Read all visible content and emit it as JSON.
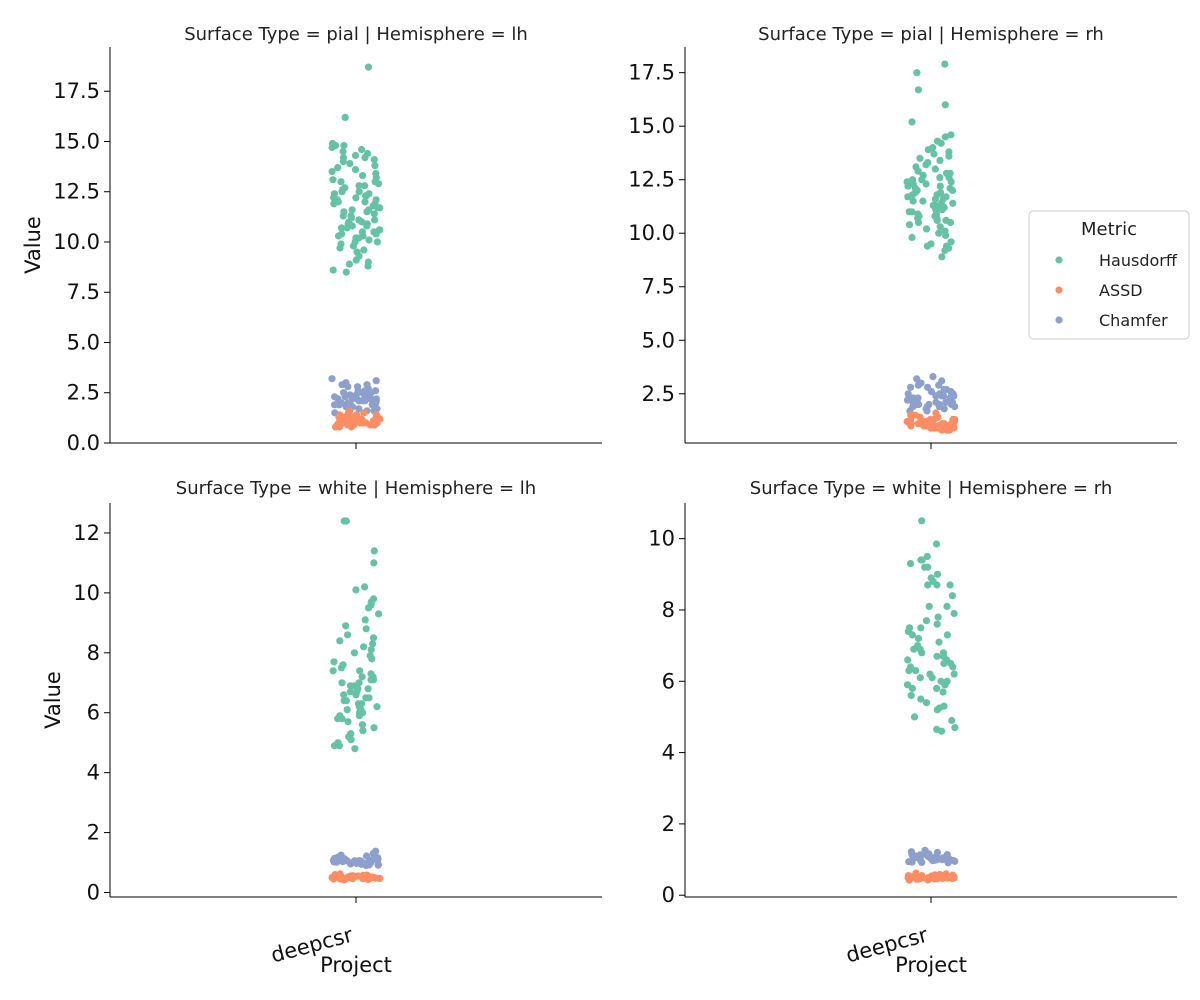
{
  "figure": {
    "ylabel": "Value",
    "xlabel": "Project",
    "project": "deepcsr"
  },
  "legend": {
    "title": "Metric",
    "placement": "right",
    "entries": [
      {
        "name": "Hausdorff",
        "color": "#66c2a5"
      },
      {
        "name": "ASSD",
        "color": "#fc8d62"
      },
      {
        "name": "Chamfer",
        "color": "#8da0cb"
      }
    ]
  },
  "chart_data": [
    {
      "type": "scatter",
      "title": "Surface Type = pial | Hemisphere = lh",
      "xlabel": "",
      "ylabel": "Value",
      "categories": [
        "deepcsr"
      ],
      "ylim": [
        0,
        19.7
      ],
      "yticks": [
        "0.0",
        "2.5",
        "5.0",
        "7.5",
        "10.0",
        "12.5",
        "15.0",
        "17.5"
      ],
      "grid": false,
      "series": [
        {
          "name": "Hausdorff",
          "values": [
            18.7,
            16.2,
            14.9,
            14.8,
            14.8,
            14.7,
            14.6,
            14.5,
            14.4,
            14.3,
            14.2,
            14.2,
            14.1,
            14.0,
            13.9,
            13.8,
            13.7,
            13.6,
            13.5,
            13.4,
            13.3,
            13.2,
            13.1,
            13.0,
            13.0,
            12.9,
            12.8,
            12.8,
            12.7,
            12.6,
            12.5,
            12.5,
            12.4,
            12.4,
            12.3,
            12.3,
            12.2,
            12.2,
            12.1,
            12.1,
            12.0,
            12.0,
            11.9,
            11.9,
            11.8,
            11.8,
            11.7,
            11.7,
            11.6,
            11.6,
            11.5,
            11.5,
            11.4,
            11.3,
            11.3,
            11.2,
            11.1,
            11.1,
            11.0,
            11.0,
            10.9,
            10.9,
            10.8,
            10.8,
            10.7,
            10.7,
            10.6,
            10.6,
            10.5,
            10.5,
            10.4,
            10.4,
            10.3,
            10.3,
            10.2,
            10.2,
            10.1,
            10.0,
            10.0,
            9.9,
            9.8,
            9.7,
            9.6,
            9.5,
            9.3,
            9.1,
            9.0,
            8.9,
            8.8,
            8.6,
            8.5
          ]
        },
        {
          "name": "ASSD",
          "values": [
            1.6,
            1.5,
            1.5,
            1.4,
            1.4,
            1.4,
            1.3,
            1.3,
            1.3,
            1.3,
            1.2,
            1.2,
            1.2,
            1.2,
            1.2,
            1.1,
            1.1,
            1.1,
            1.1,
            1.1,
            1.1,
            1.0,
            1.0,
            1.0,
            1.0,
            1.0,
            1.0,
            1.0,
            0.9,
            0.9,
            0.9,
            0.9,
            0.9,
            0.9,
            0.8,
            0.8,
            0.8,
            0.8,
            1.2,
            1.1,
            1.0,
            1.3,
            0.9,
            1.1,
            1.0,
            1.2,
            1.0,
            0.9,
            1.1,
            1.0
          ]
        },
        {
          "name": "Chamfer",
          "values": [
            3.2,
            3.1,
            3.0,
            2.9,
            2.9,
            2.8,
            2.8,
            2.7,
            2.7,
            2.6,
            2.6,
            2.5,
            2.5,
            2.5,
            2.4,
            2.4,
            2.4,
            2.3,
            2.3,
            2.3,
            2.2,
            2.2,
            2.2,
            2.2,
            2.1,
            2.1,
            2.1,
            2.1,
            2.0,
            2.0,
            2.0,
            2.0,
            1.9,
            1.9,
            1.9,
            1.8,
            1.8,
            1.8,
            1.7,
            1.7,
            1.6,
            1.6,
            1.5,
            2.3,
            2.1,
            2.4,
            2.2,
            2.0,
            2.6,
            1.9
          ]
        }
      ]
    },
    {
      "type": "scatter",
      "title": "Surface Type = pial | Hemisphere = rh",
      "xlabel": "",
      "ylabel": "",
      "categories": [
        "deepcsr"
      ],
      "ylim": [
        0.2,
        18.7
      ],
      "yticks": [
        "2.5",
        "5.0",
        "7.5",
        "10.0",
        "12.5",
        "15.0",
        "17.5"
      ],
      "grid": false,
      "series": [
        {
          "name": "Hausdorff",
          "values": [
            17.9,
            17.5,
            16.7,
            16.0,
            15.2,
            14.6,
            14.5,
            14.3,
            14.2,
            14.0,
            13.9,
            13.8,
            13.7,
            13.6,
            13.5,
            13.4,
            13.3,
            13.2,
            13.1,
            13.0,
            12.9,
            12.8,
            12.8,
            12.7,
            12.6,
            12.6,
            12.5,
            12.5,
            12.4,
            12.4,
            12.3,
            12.3,
            12.2,
            12.2,
            12.1,
            12.1,
            12.0,
            12.0,
            11.9,
            11.9,
            11.8,
            11.8,
            11.7,
            11.7,
            11.6,
            11.6,
            11.5,
            11.5,
            11.4,
            11.4,
            11.3,
            11.3,
            11.2,
            11.2,
            11.1,
            11.1,
            11.0,
            11.0,
            10.9,
            10.9,
            10.8,
            10.8,
            10.7,
            10.7,
            10.6,
            10.6,
            10.5,
            10.5,
            10.4,
            10.3,
            10.2,
            10.1,
            10.0,
            9.9,
            9.8,
            9.6,
            9.5,
            9.4,
            9.4,
            9.3,
            9.2,
            8.9
          ]
        },
        {
          "name": "ASSD",
          "values": [
            1.6,
            1.5,
            1.5,
            1.4,
            1.4,
            1.3,
            1.3,
            1.3,
            1.3,
            1.2,
            1.2,
            1.2,
            1.2,
            1.2,
            1.1,
            1.1,
            1.1,
            1.1,
            1.1,
            1.1,
            1.0,
            1.0,
            1.0,
            1.0,
            1.0,
            1.0,
            1.0,
            0.9,
            0.9,
            0.9,
            0.9,
            0.9,
            0.9,
            0.8,
            0.8,
            0.8,
            1.2,
            1.1,
            1.0,
            1.3,
            0.9,
            1.1,
            1.0,
            1.2,
            1.0,
            0.9,
            1.1,
            1.0
          ]
        },
        {
          "name": "Chamfer",
          "values": [
            3.3,
            3.2,
            3.1,
            3.0,
            2.9,
            2.9,
            2.8,
            2.8,
            2.7,
            2.7,
            2.6,
            2.6,
            2.5,
            2.5,
            2.5,
            2.4,
            2.4,
            2.4,
            2.3,
            2.3,
            2.3,
            2.2,
            2.2,
            2.2,
            2.2,
            2.1,
            2.1,
            2.1,
            2.1,
            2.0,
            2.0,
            2.0,
            2.0,
            1.9,
            1.9,
            1.9,
            1.8,
            1.8,
            1.7,
            1.7,
            2.3,
            2.1,
            2.4,
            2.2,
            2.0,
            2.6,
            1.9,
            2.2
          ]
        }
      ]
    },
    {
      "type": "scatter",
      "title": "Surface Type = white | Hemisphere = lh",
      "xlabel": "Project",
      "ylabel": "Value",
      "categories": [
        "deepcsr"
      ],
      "ylim": [
        -0.15,
        13.0
      ],
      "yticks": [
        "0",
        "2",
        "4",
        "6",
        "8",
        "10",
        "12"
      ],
      "grid": false,
      "series": [
        {
          "name": "Hausdorff",
          "values": [
            12.4,
            12.4,
            11.4,
            11.0,
            10.2,
            10.1,
            9.8,
            9.7,
            9.6,
            9.5,
            9.3,
            9.1,
            8.9,
            8.8,
            8.6,
            8.5,
            8.4,
            8.3,
            8.2,
            8.1,
            8.0,
            7.9,
            7.8,
            7.7,
            7.6,
            7.5,
            7.4,
            7.4,
            7.3,
            7.2,
            7.2,
            7.1,
            7.1,
            7.0,
            7.0,
            6.9,
            6.9,
            6.8,
            6.8,
            6.7,
            6.7,
            6.6,
            6.6,
            6.5,
            6.5,
            6.4,
            6.4,
            6.3,
            6.3,
            6.2,
            6.2,
            6.1,
            6.1,
            6.0,
            6.0,
            5.9,
            5.9,
            5.8,
            5.8,
            5.7,
            5.6,
            5.5,
            5.4,
            5.3,
            5.2,
            5.1,
            5.0,
            4.9,
            4.9,
            4.8
          ]
        },
        {
          "name": "ASSD",
          "values": [
            0.62,
            0.6,
            0.58,
            0.57,
            0.56,
            0.55,
            0.55,
            0.54,
            0.54,
            0.53,
            0.53,
            0.52,
            0.52,
            0.52,
            0.51,
            0.51,
            0.51,
            0.5,
            0.5,
            0.5,
            0.5,
            0.49,
            0.49,
            0.49,
            0.48,
            0.48,
            0.48,
            0.47,
            0.47,
            0.46,
            0.46,
            0.45,
            0.45,
            0.44,
            0.43,
            0.42,
            0.5,
            0.52,
            0.48,
            0.51
          ]
        },
        {
          "name": "Chamfer",
          "values": [
            1.38,
            1.3,
            1.25,
            1.22,
            1.2,
            1.18,
            1.16,
            1.15,
            1.14,
            1.13,
            1.12,
            1.11,
            1.1,
            1.1,
            1.09,
            1.08,
            1.07,
            1.06,
            1.06,
            1.05,
            1.05,
            1.04,
            1.03,
            1.02,
            1.02,
            1.01,
            1.0,
            1.0,
            0.99,
            0.98,
            0.97,
            0.96,
            0.95,
            0.94,
            0.93,
            0.92,
            0.91,
            0.9,
            1.05,
            1.08
          ]
        }
      ]
    },
    {
      "type": "scatter",
      "title": "Surface Type = white | Hemisphere = rh",
      "xlabel": "Project",
      "ylabel": "",
      "categories": [
        "deepcsr"
      ],
      "ylim": [
        -0.05,
        11.0
      ],
      "yticks": [
        "0",
        "2",
        "4",
        "6",
        "8",
        "10"
      ],
      "grid": false,
      "series": [
        {
          "name": "Hausdorff",
          "values": [
            10.5,
            9.85,
            9.5,
            9.4,
            9.4,
            9.3,
            9.2,
            9.2,
            9.0,
            8.9,
            8.8,
            8.7,
            8.7,
            8.7,
            8.4,
            8.1,
            8.1,
            7.9,
            7.8,
            7.7,
            7.6,
            7.5,
            7.5,
            7.4,
            7.3,
            7.3,
            7.2,
            7.1,
            7.0,
            6.9,
            6.9,
            6.8,
            6.8,
            6.7,
            6.7,
            6.6,
            6.6,
            6.5,
            6.5,
            6.4,
            6.4,
            6.3,
            6.3,
            6.2,
            6.2,
            6.1,
            6.1,
            6.0,
            6.0,
            5.9,
            5.9,
            5.8,
            5.8,
            5.7,
            5.6,
            5.5,
            5.4,
            5.3,
            5.25,
            5.2,
            5.0,
            4.9,
            4.7,
            4.65,
            4.6
          ]
        },
        {
          "name": "ASSD",
          "values": [
            0.62,
            0.6,
            0.58,
            0.57,
            0.56,
            0.55,
            0.55,
            0.54,
            0.54,
            0.53,
            0.53,
            0.52,
            0.52,
            0.52,
            0.51,
            0.51,
            0.51,
            0.5,
            0.5,
            0.5,
            0.5,
            0.49,
            0.49,
            0.49,
            0.48,
            0.48,
            0.48,
            0.47,
            0.47,
            0.46,
            0.46,
            0.45,
            0.45,
            0.44,
            0.43,
            0.42,
            0.5,
            0.52,
            0.48,
            0.51
          ]
        },
        {
          "name": "Chamfer",
          "values": [
            1.26,
            1.22,
            1.2,
            1.18,
            1.16,
            1.15,
            1.14,
            1.13,
            1.12,
            1.11,
            1.1,
            1.09,
            1.08,
            1.07,
            1.06,
            1.05,
            1.05,
            1.04,
            1.03,
            1.02,
            1.01,
            1.0,
            1.0,
            0.99,
            0.98,
            0.97,
            0.96,
            0.95,
            0.94,
            0.93,
            0.92,
            0.91,
            1.0,
            1.02,
            0.98,
            1.04,
            0.97,
            1.01
          ]
        }
      ]
    }
  ]
}
